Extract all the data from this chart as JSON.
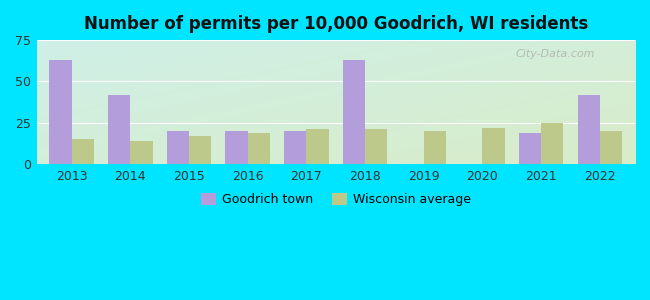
{
  "title": "Number of permits per 10,000 Goodrich, WI residents",
  "years": [
    2013,
    2014,
    2015,
    2016,
    2017,
    2018,
    2019,
    2020,
    2021,
    2022
  ],
  "goodrich": [
    63,
    42,
    20,
    20,
    20,
    63,
    0,
    0,
    19,
    42
  ],
  "wisconsin": [
    15,
    14,
    17,
    19,
    21,
    21,
    20,
    22,
    25,
    20
  ],
  "goodrich_color": "#b39ddb",
  "wisconsin_color": "#bdc98a",
  "background_outer": "#00e5ff",
  "ylim": [
    0,
    75
  ],
  "yticks": [
    0,
    25,
    50,
    75
  ],
  "bar_width": 0.38,
  "legend_goodrich": "Goodrich town",
  "legend_wisconsin": "Wisconsin average",
  "watermark": "City-Data.com",
  "grad_top_left": "#cff0e8",
  "grad_bottom_right": "#d8ecc8"
}
